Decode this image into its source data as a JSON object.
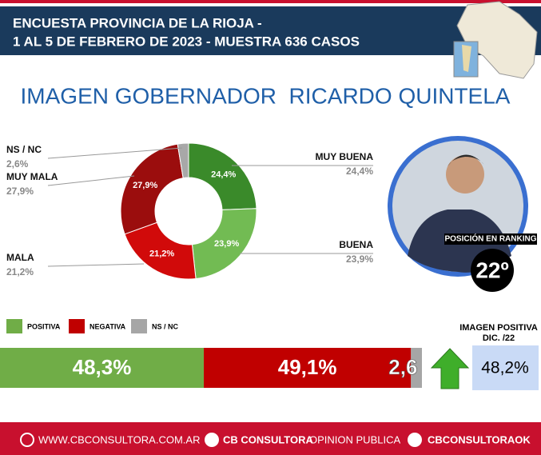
{
  "header": {
    "line1": "ENCUESTA PROVINCIA DE LA RIOJA -",
    "line2": "1 AL 5 DE FEBRERO DE 2023 - MUESTRA 636 CASOS"
  },
  "title": "IMAGEN GOBERNADOR  RICARDO QUINTELA",
  "ranking": {
    "label": "POSICIÓN EN RANKING",
    "value": "22º"
  },
  "previous": {
    "title_line1": "IMAGEN POSITIVA",
    "title_line2": "DIC. /22",
    "value": "48,2%"
  },
  "footer": {
    "web": "WWW.CBCONSULTORA.COM.AR",
    "facebook_bold": "CB CONSULTORA",
    "facebook_rest": "OPINION PUBLICA",
    "twitter": "CBCONSULTORAOK"
  },
  "chart_data": [
    {
      "type": "donut",
      "categories": [
        "MUY BUENA",
        "BUENA",
        "MALA",
        "MUY MALA",
        "NS / NC"
      ],
      "values": [
        24.4,
        23.9,
        21.2,
        27.9,
        2.6
      ],
      "value_labels": [
        "24,4%",
        "23,9%",
        "21,2%",
        "27,9%",
        "2,6%"
      ],
      "colors": [
        "#3a8a2a",
        "#72bb53",
        "#d10a0a",
        "#9b0d0d",
        "#a8a8a8"
      ]
    },
    {
      "type": "stacked_bar",
      "xlim": [
        0,
        100
      ],
      "series": [
        {
          "name": "POSITIVA",
          "color": "#70ad47",
          "values": [
            48.3
          ],
          "value_labels": [
            "48,3%"
          ]
        },
        {
          "name": "NEGATIVA",
          "color": "#c00000",
          "values": [
            49.1
          ],
          "value_labels": [
            "49,1%"
          ]
        },
        {
          "name": "NS / NC",
          "color": "#a6a6a6",
          "values": [
            2.6
          ],
          "value_labels": [
            "2,6"
          ]
        }
      ]
    }
  ]
}
